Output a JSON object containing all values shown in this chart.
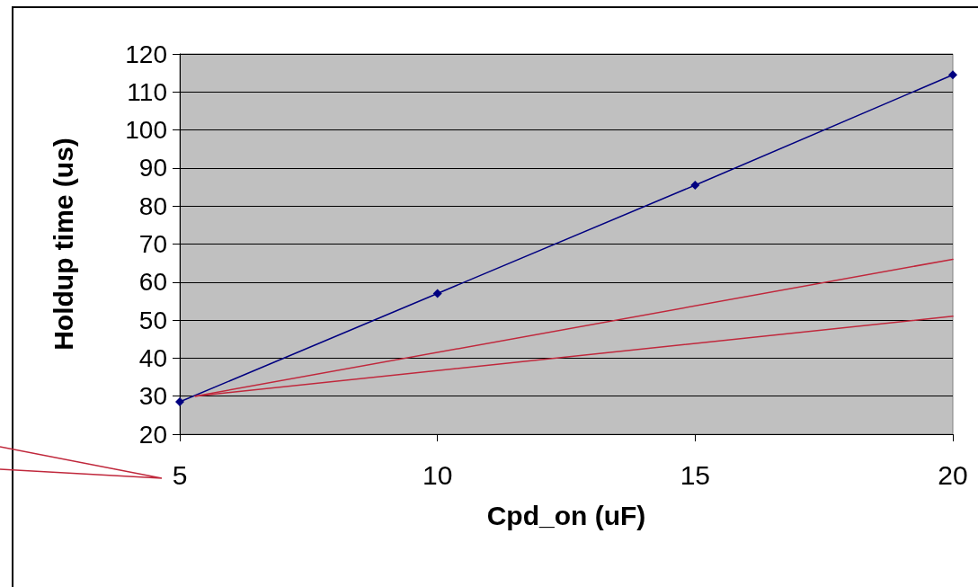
{
  "chart_data": {
    "type": "line",
    "xlabel": "Cpd_on (uF)",
    "ylabel": "Holdup time (us)",
    "xlim": [
      5,
      20
    ],
    "xticks": [
      5,
      10,
      15,
      20
    ],
    "ylim": [
      20,
      120
    ],
    "yticks": [
      20,
      30,
      40,
      50,
      60,
      70,
      80,
      90,
      100,
      110,
      120
    ],
    "grid": "y",
    "series": [
      {
        "color": "#000080",
        "marker": "diamond",
        "x": [
          5,
          10,
          15,
          20
        ],
        "values": [
          28.5,
          57,
          85.5,
          114.5
        ]
      },
      {
        "color": "#c0283c",
        "marker": "none",
        "x": [
          5.3,
          20
        ],
        "values": [
          30,
          66
        ]
      },
      {
        "color": "#c0283c",
        "marker": "none",
        "x": [
          5.3,
          20
        ],
        "values": [
          30,
          51
        ]
      }
    ]
  }
}
